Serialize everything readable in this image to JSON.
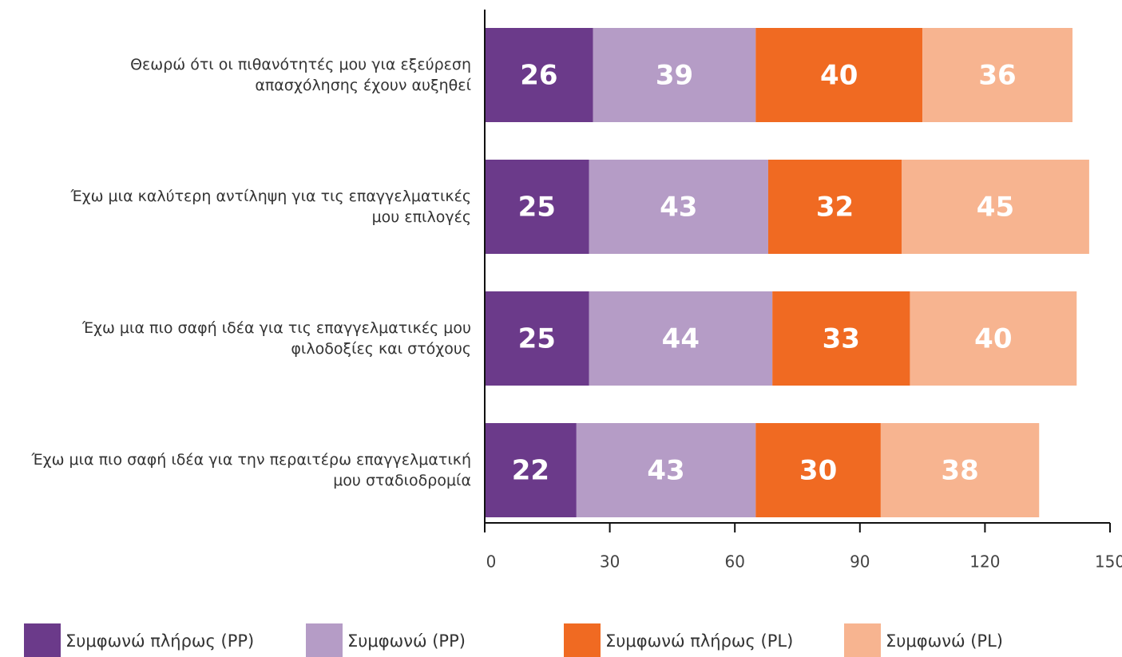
{
  "chart_data": {
    "type": "stacked-barh",
    "categories": [
      "Θεωρώ ότι οι πιθανότητές μου για εξεύρεση\nαπασχόλησης έχουν αυξηθεί",
      "Έχω μια καλύτερη αντίληψη για τις επαγγελματικές\nμου επιλογές",
      "Έχω μια πιο σαφή ιδέα για τις επαγγελματικές μου\nφιλοδοξίες και στόχους",
      "Έχω μια πιο σαφή ιδέα για την περαιτέρω επαγγελματική\nμου σταδιοδρομία"
    ],
    "series": [
      {
        "name": "Συμφωνώ πλήρως (PP)",
        "color": "#6b3a8a",
        "values": [
          26,
          25,
          25,
          22
        ]
      },
      {
        "name": "Συμφωνώ (PP)",
        "color": "#b59cc6",
        "values": [
          39,
          43,
          44,
          43
        ]
      },
      {
        "name": "Συμφωνώ πλήρως (PL)",
        "color": "#f06a22",
        "values": [
          40,
          32,
          33,
          30
        ]
      },
      {
        "name": "Συμφωνώ (PL)",
        "color": "#f7b490",
        "values": [
          36,
          45,
          40,
          38
        ]
      }
    ],
    "xlim": [
      0,
      150
    ],
    "xticks": [
      0,
      30,
      60,
      90,
      120,
      150
    ]
  }
}
